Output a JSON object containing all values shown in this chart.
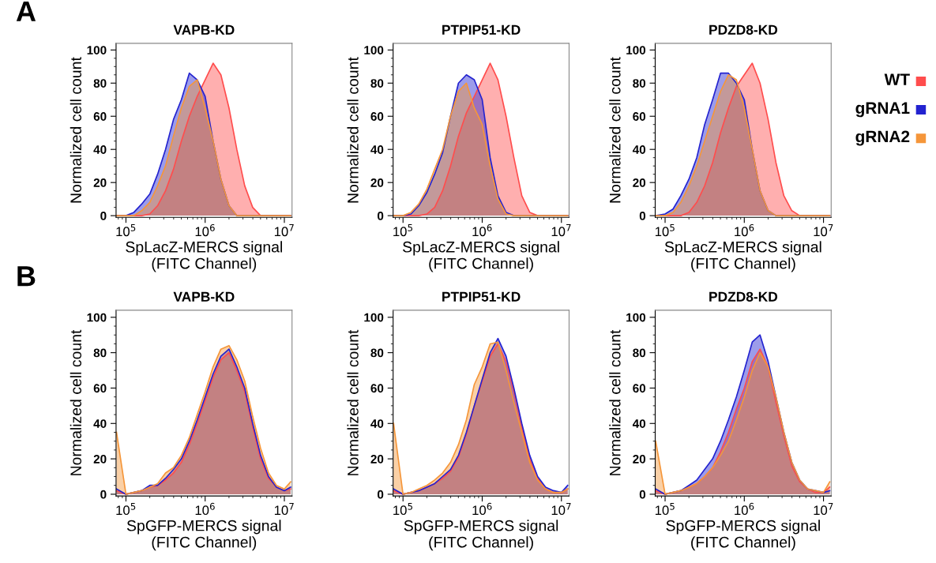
{
  "chart_data": [
    {
      "type": "area",
      "title": "VAPB-KD",
      "xlabel": "SpLacZ-MERCS signal\n(FITC Channel)",
      "ylabel": "Normalized cell count",
      "annotations": [
        "A"
      ],
      "log": "x",
      "xlim": [
        75000,
        12500000
      ],
      "ylim": [
        -1,
        104
      ],
      "xticks": [
        {
          "value": 100000,
          "label": "10$^{5}$"
        },
        {
          "value": 1000000,
          "label": "10$^{6}$"
        },
        {
          "value": 10000000,
          "label": "10$^{7}$"
        }
      ],
      "yticks": [
        0,
        20,
        40,
        60,
        80,
        100
      ],
      "x": [
        76000,
        100000,
        126000,
        158000,
        200000,
        251000,
        316000,
        398000,
        501000,
        631000,
        794000,
        1000000,
        1260000,
        1580000,
        2000000,
        2510000,
        3160000,
        3980000,
        5010000,
        6310000,
        7940000,
        10000000,
        12000000
      ],
      "series": [
        {
          "color": "#ff4d4d",
          "values": [
            0,
            0,
            0,
            0,
            1,
            6,
            15,
            28,
            45,
            60,
            72,
            82,
            92,
            85,
            65,
            40,
            18,
            5,
            0,
            0,
            0,
            0,
            0
          ]
        },
        {
          "color": "#2323d0",
          "values": [
            0,
            0,
            2,
            7,
            13,
            25,
            40,
            58,
            70,
            86,
            82,
            72,
            45,
            22,
            6,
            0,
            0,
            0,
            0,
            0,
            0,
            0,
            0
          ]
        },
        {
          "color": "#f5963a",
          "values": [
            0,
            0,
            0,
            3,
            8,
            18,
            30,
            48,
            65,
            78,
            82,
            65,
            45,
            22,
            6,
            0,
            0,
            0,
            0,
            0,
            0,
            0,
            0
          ]
        }
      ]
    },
    {
      "type": "area",
      "title": "PTPIP51-KD",
      "xlabel": "SpLacZ-MERCS signal\n(FITC Channel)",
      "ylabel": "Normalized cell count",
      "log": "x",
      "xlim": [
        75000,
        12500000
      ],
      "ylim": [
        -1,
        104
      ],
      "xticks": [
        {
          "value": 100000,
          "label": "10$^{5}$"
        },
        {
          "value": 1000000,
          "label": "10$^{6}$"
        },
        {
          "value": 10000000,
          "label": "10$^{7}$"
        }
      ],
      "yticks": [
        0,
        20,
        40,
        60,
        80,
        100
      ],
      "x": [
        76000,
        100000,
        126000,
        158000,
        200000,
        251000,
        316000,
        398000,
        501000,
        631000,
        794000,
        1000000,
        1260000,
        1580000,
        2000000,
        2510000,
        3160000,
        3980000,
        5010000,
        6310000,
        7940000,
        10000000,
        12000000
      ],
      "series": [
        {
          "color": "#ff4d4d",
          "values": [
            0,
            0,
            0,
            0,
            1,
            5,
            15,
            30,
            48,
            62,
            72,
            82,
            92,
            82,
            60,
            35,
            12,
            2,
            0,
            0,
            0,
            0,
            0
          ]
        },
        {
          "color": "#2323d0",
          "values": [
            0,
            0,
            1,
            6,
            14,
            25,
            38,
            60,
            80,
            85,
            82,
            70,
            35,
            12,
            2,
            0,
            0,
            0,
            0,
            0,
            0,
            0,
            0
          ]
        },
        {
          "color": "#f5963a",
          "values": [
            0,
            0,
            2,
            7,
            16,
            28,
            40,
            60,
            75,
            80,
            65,
            55,
            30,
            10,
            1,
            0,
            0,
            0,
            0,
            0,
            0,
            0,
            0
          ]
        }
      ]
    },
    {
      "type": "area",
      "title": "PDZD8-KD",
      "xlabel": "SpLacZ-MERCS signal\n(FITC Channel)",
      "ylabel": "Normalized cell count",
      "log": "x",
      "xlim": [
        75000,
        12500000
      ],
      "ylim": [
        -1,
        104
      ],
      "legend": "right",
      "xticks": [
        {
          "value": 100000,
          "label": "10$^{5}$"
        },
        {
          "value": 1000000,
          "label": "10$^{6}$"
        },
        {
          "value": 10000000,
          "label": "10$^{7}$"
        }
      ],
      "yticks": [
        0,
        20,
        40,
        60,
        80,
        100
      ],
      "x": [
        76000,
        100000,
        126000,
        158000,
        200000,
        251000,
        316000,
        398000,
        501000,
        631000,
        794000,
        1000000,
        1260000,
        1580000,
        2000000,
        2510000,
        3160000,
        3980000,
        5010000,
        6310000,
        7940000,
        10000000,
        12000000
      ],
      "series": [
        {
          "name": "WT",
          "color": "#ff4d4d",
          "values": [
            0,
            0,
            0,
            0,
            2,
            8,
            18,
            32,
            50,
            65,
            78,
            85,
            92,
            80,
            58,
            32,
            12,
            3,
            0,
            0,
            0,
            0,
            0
          ]
        },
        {
          "name": "gRNA1",
          "color": "#2323d0",
          "values": [
            0,
            1,
            4,
            12,
            22,
            35,
            55,
            70,
            86,
            86,
            80,
            70,
            40,
            15,
            3,
            0,
            0,
            0,
            0,
            0,
            0,
            0,
            0
          ]
        },
        {
          "name": "gRNA2",
          "color": "#f5963a",
          "values": [
            0,
            0,
            2,
            8,
            18,
            30,
            45,
            60,
            75,
            85,
            82,
            65,
            40,
            15,
            3,
            0,
            0,
            0,
            0,
            0,
            0,
            0,
            0
          ]
        }
      ]
    },
    {
      "type": "area",
      "title": "VAPB-KD",
      "xlabel": "SpGFP-MERCS signal\n(FITC Channel)",
      "ylabel": "Normalized cell count",
      "annotations": [
        "B"
      ],
      "log": "x",
      "xlim": [
        75000,
        12500000
      ],
      "ylim": [
        -1,
        104
      ],
      "xticks": [
        {
          "value": 100000,
          "label": "10$^{5}$"
        },
        {
          "value": 1000000,
          "label": "10$^{6}$"
        },
        {
          "value": 10000000,
          "label": "10$^{7}$"
        }
      ],
      "yticks": [
        0,
        20,
        40,
        60,
        80,
        100
      ],
      "x": [
        76000,
        100000,
        126000,
        158000,
        200000,
        251000,
        316000,
        398000,
        501000,
        631000,
        794000,
        1000000,
        1260000,
        1580000,
        2000000,
        2510000,
        3160000,
        3980000,
        5010000,
        6310000,
        7940000,
        10000000,
        12000000
      ],
      "series": [
        {
          "color": "#ff4d4d",
          "values": [
            2,
            0,
            1,
            2,
            4,
            5,
            8,
            12,
            18,
            28,
            40,
            53,
            66,
            76,
            80,
            70,
            58,
            38,
            20,
            9,
            4,
            2,
            3
          ]
        },
        {
          "color": "#2323d0",
          "values": [
            3,
            0,
            1,
            2,
            5,
            5,
            9,
            14,
            20,
            30,
            42,
            55,
            68,
            78,
            82,
            72,
            60,
            40,
            22,
            10,
            4,
            2,
            4
          ]
        },
        {
          "color": "#f5963a",
          "values": [
            35,
            0,
            1,
            2,
            4,
            6,
            12,
            15,
            22,
            32,
            45,
            58,
            72,
            82,
            84,
            76,
            64,
            44,
            26,
            12,
            5,
            3,
            7
          ]
        }
      ]
    },
    {
      "type": "area",
      "title": "PTPIP51-KD",
      "xlabel": "SpGFP-MERCS signal\n(FITC Channel)",
      "ylabel": "Normalized cell count",
      "log": "x",
      "xlim": [
        75000,
        12500000
      ],
      "ylim": [
        -1,
        104
      ],
      "xticks": [
        {
          "value": 100000,
          "label": "10$^{5}$"
        },
        {
          "value": 1000000,
          "label": "10$^{6}$"
        },
        {
          "value": 10000000,
          "label": "10$^{7}$"
        }
      ],
      "yticks": [
        0,
        20,
        40,
        60,
        80,
        100
      ],
      "x": [
        76000,
        100000,
        126000,
        158000,
        200000,
        251000,
        316000,
        398000,
        501000,
        631000,
        794000,
        1000000,
        1260000,
        1580000,
        2000000,
        2510000,
        3160000,
        3980000,
        5010000,
        6310000,
        7940000,
        10000000,
        12000000
      ],
      "series": [
        {
          "color": "#ff4d4d",
          "values": [
            2,
            0,
            1,
            2,
            4,
            6,
            9,
            13,
            21,
            34,
            50,
            64,
            78,
            85,
            75,
            58,
            38,
            20,
            9,
            3,
            1,
            1,
            3
          ]
        },
        {
          "color": "#2323d0",
          "values": [
            3,
            0,
            1,
            2,
            4,
            6,
            10,
            14,
            22,
            35,
            50,
            65,
            80,
            88,
            78,
            60,
            40,
            22,
            10,
            4,
            2,
            1,
            5
          ]
        },
        {
          "color": "#f5963a",
          "values": [
            40,
            0,
            1,
            3,
            5,
            8,
            12,
            18,
            28,
            42,
            62,
            72,
            85,
            86,
            70,
            52,
            35,
            18,
            8,
            3,
            1,
            1,
            3
          ]
        }
      ]
    },
    {
      "type": "area",
      "title": "PDZD8-KD",
      "xlabel": "SpGFP-MERCS signal\n(FITC Channel)",
      "ylabel": "Normalized cell count",
      "log": "x",
      "xlim": [
        75000,
        12500000
      ],
      "ylim": [
        -1,
        104
      ],
      "xticks": [
        {
          "value": 100000,
          "label": "10$^{5}$"
        },
        {
          "value": 1000000,
          "label": "10$^{6}$"
        },
        {
          "value": 10000000,
          "label": "10$^{7}$"
        }
      ],
      "yticks": [
        0,
        20,
        40,
        60,
        80,
        100
      ],
      "x": [
        76000,
        100000,
        126000,
        158000,
        200000,
        251000,
        316000,
        398000,
        501000,
        631000,
        794000,
        1000000,
        1260000,
        1580000,
        2000000,
        2510000,
        3160000,
        3980000,
        5010000,
        6310000,
        7940000,
        10000000,
        12000000
      ],
      "series": [
        {
          "color": "#ff4d4d",
          "values": [
            2,
            0,
            1,
            2,
            4,
            6,
            10,
            15,
            24,
            35,
            48,
            60,
            75,
            82,
            72,
            52,
            33,
            16,
            7,
            3,
            1,
            1,
            4
          ]
        },
        {
          "color": "#2323d0",
          "values": [
            3,
            0,
            1,
            2,
            5,
            8,
            14,
            20,
            30,
            42,
            55,
            70,
            86,
            90,
            75,
            55,
            35,
            18,
            8,
            3,
            2,
            1,
            2
          ]
        },
        {
          "color": "#f5963a",
          "values": [
            30,
            0,
            1,
            2,
            4,
            6,
            10,
            15,
            22,
            30,
            42,
            55,
            70,
            80,
            72,
            55,
            35,
            18,
            8,
            3,
            2,
            1,
            7
          ]
        }
      ]
    }
  ]
}
